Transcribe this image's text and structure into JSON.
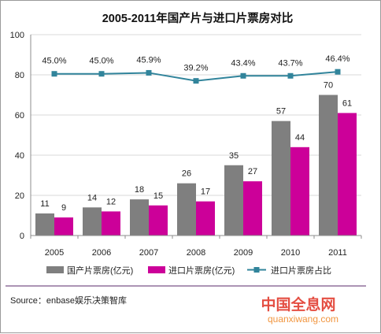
{
  "chart_data": {
    "type": "bar",
    "title": "2005-2011年国产片与进口片票房对比",
    "categories": [
      "2005",
      "2006",
      "2007",
      "2008",
      "2009",
      "2010",
      "2011"
    ],
    "ylim": [
      0,
      100
    ],
    "yticks": [
      "0",
      "20",
      "40",
      "60",
      "80",
      "100"
    ],
    "grid": true,
    "legend_position": "bottom",
    "series": [
      {
        "name": "国产片票房(亿元)",
        "type": "bar",
        "color": "#7f7f7f",
        "values": [
          11,
          14,
          18,
          26,
          35,
          57,
          70
        ],
        "labels": [
          "11",
          "14",
          "18",
          "26",
          "35",
          "57",
          "70"
        ]
      },
      {
        "name": "进口片票房(亿元)",
        "type": "bar",
        "color": "#cc0099",
        "values": [
          9,
          12,
          15,
          17,
          27,
          44,
          61
        ],
        "labels": [
          "9",
          "12",
          "15",
          "17",
          "27",
          "44",
          "61"
        ]
      },
      {
        "name": "进口片票房占比",
        "type": "line",
        "color": "#31849b",
        "values": [
          80.5,
          80.5,
          81,
          77,
          79.5,
          79.5,
          81.5
        ],
        "labels": [
          "45.0%",
          "45.0%",
          "45.9%",
          "39.2%",
          "43.4%",
          "43.7%",
          "46.4%"
        ]
      }
    ]
  },
  "source": "Source：enbase娱乐决策智库",
  "watermark": {
    "text": "中国全息网",
    "url": "quanxiwang.com"
  }
}
